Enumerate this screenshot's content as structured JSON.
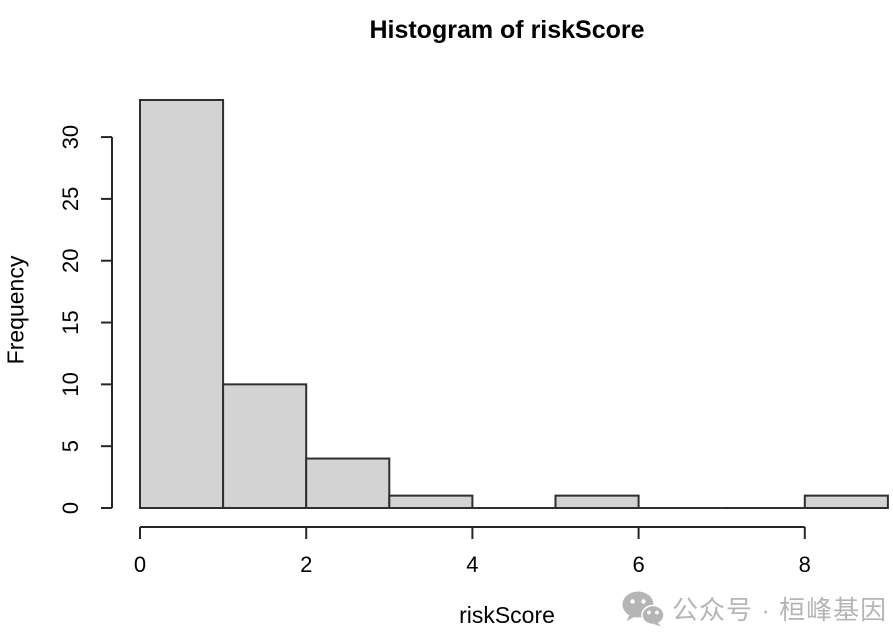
{
  "chart_data": {
    "type": "bar",
    "title": "Histogram of riskScore",
    "xlabel": "riskScore",
    "ylabel": "Frequency",
    "bin_edges": [
      0,
      1,
      2,
      3,
      4,
      5,
      6,
      7,
      8,
      9
    ],
    "counts": [
      33,
      10,
      4,
      1,
      0,
      1,
      0,
      0,
      1
    ],
    "x_ticks": [
      0,
      2,
      4,
      6,
      8
    ],
    "y_ticks": [
      0,
      5,
      10,
      15,
      20,
      25,
      30
    ],
    "xlim": [
      0,
      9
    ],
    "ylim": [
      0,
      33
    ],
    "grid": "off",
    "legend": "none",
    "bar_fill": "#d3d3d3",
    "bar_border": "#2f2f2f",
    "axis_color": "#262626",
    "text_color": "#000000"
  },
  "watermark": {
    "icon": "wechat-icon",
    "text": "公众号 · 桓峰基因",
    "color": "#b5b5b5"
  }
}
